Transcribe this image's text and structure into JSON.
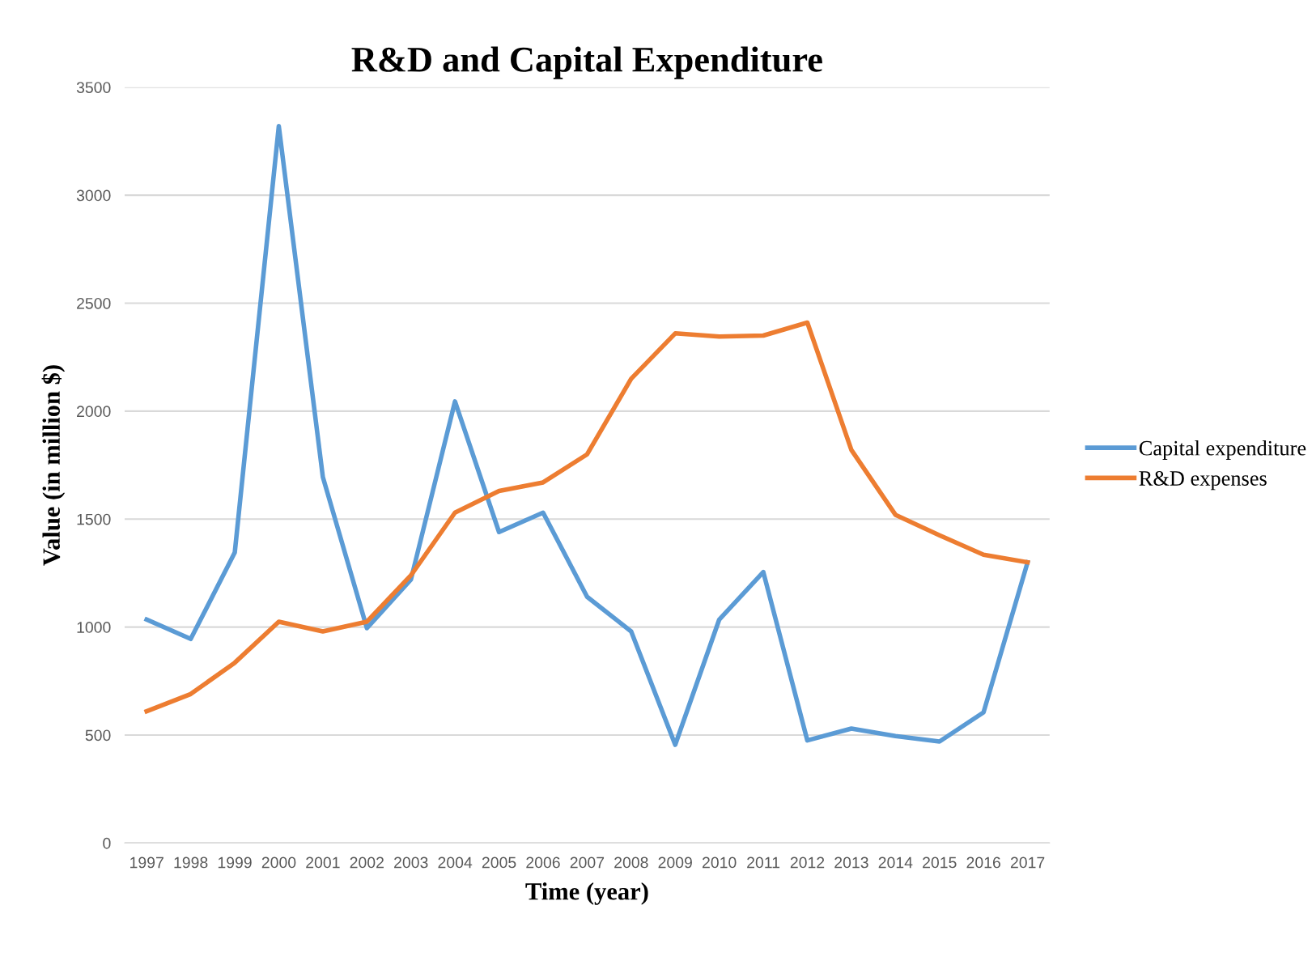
{
  "chart_data": {
    "type": "line",
    "title": "R&D and Capital Expenditure",
    "xlabel": "Time (year)",
    "ylabel": "Value (in million $)",
    "categories": [
      "1997",
      "1998",
      "1999",
      "2000",
      "2001",
      "2002",
      "2003",
      "2004",
      "2005",
      "2006",
      "2007",
      "2008",
      "2009",
      "2010",
      "2011",
      "2012",
      "2013",
      "2014",
      "2015",
      "2016",
      "2017"
    ],
    "series": [
      {
        "name": "Capital expenditure",
        "color": "#5b9bd5",
        "values": [
          1035,
          945,
          1345,
          3320,
          1695,
          995,
          1220,
          2045,
          1440,
          1530,
          1140,
          980,
          455,
          1035,
          1255,
          475,
          530,
          495,
          470,
          605,
          1300
        ]
      },
      {
        "name": "R&D expenses",
        "color": "#ed7d31",
        "values": [
          610,
          690,
          835,
          1025,
          980,
          1025,
          1240,
          1530,
          1630,
          1670,
          1800,
          2150,
          2360,
          2345,
          2350,
          2410,
          1820,
          1520,
          1425,
          1335,
          1300
        ]
      }
    ],
    "ylim": [
      0,
      3500
    ],
    "yticks": [
      0,
      500,
      1000,
      1500,
      2000,
      2500,
      3000,
      3500
    ],
    "grid": "y",
    "legend": "right",
    "marker": "none",
    "line_style": "solid"
  }
}
